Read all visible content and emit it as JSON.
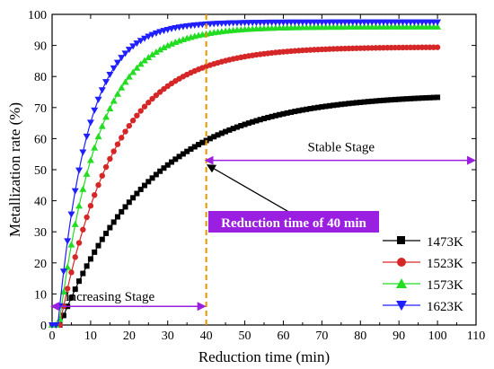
{
  "chart_data": {
    "type": "scatter",
    "xlabel": "Reduction time (min)",
    "ylabel": "Metallization rate (%)",
    "xlim": [
      0,
      110
    ],
    "ylim": [
      0,
      100
    ],
    "xticks": [
      0,
      10,
      20,
      30,
      40,
      50,
      60,
      70,
      80,
      90,
      100,
      110
    ],
    "yticks": [
      0,
      10,
      20,
      30,
      40,
      50,
      60,
      70,
      80,
      90,
      100
    ],
    "grid": false,
    "legend_position": "bottom-right",
    "series": [
      {
        "name": "1473K",
        "color": "#000000",
        "marker": "square",
        "params": {
          "max": 74.5,
          "k": 0.042,
          "t0": 2.0
        }
      },
      {
        "name": "1523K",
        "color": "#d62728",
        "marker": "circle",
        "params": {
          "max": 89.5,
          "k": 0.07,
          "t0": 2.0
        }
      },
      {
        "name": "1573K",
        "color": "#22dd22",
        "marker": "triangle-up",
        "params": {
          "max": 96.0,
          "k": 0.098,
          "t0": 1.8
        }
      },
      {
        "name": "1623K",
        "color": "#1f1fff",
        "marker": "triangle-down",
        "params": {
          "max": 97.5,
          "k": 0.13,
          "t0": 1.5
        }
      }
    ],
    "vertical_line": {
      "x": 40,
      "color": "#e69500",
      "style": "dashed"
    },
    "annotations": {
      "stable_stage": {
        "text": "Stable Stage",
        "from_x": 40,
        "to_x": 110,
        "y": 53
      },
      "increasing_stage": {
        "text": "Increasing Stage",
        "from_x": 0,
        "to_x": 40,
        "y": 6
      },
      "reduction_time": {
        "text": "Reduction time of 40 min",
        "box_color": "#9b1fe0",
        "arrow_target": {
          "x": 40,
          "y": 52
        }
      }
    },
    "arrow_color": "#9b1fe0"
  }
}
